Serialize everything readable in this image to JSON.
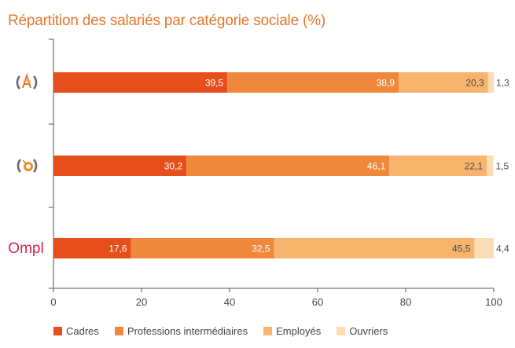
{
  "chart_data": {
    "type": "bar",
    "orientation": "horizontal",
    "stacked": true,
    "title": "Répartition des salariés par catégorie sociale (%)",
    "xlim": [
      0,
      100
    ],
    "xticks": [
      "0",
      "20",
      "40",
      "60",
      "80",
      "100"
    ],
    "grid": false,
    "legend_position": "bottom",
    "categories": [
      {
        "logo": "apec-logo",
        "logo_text": ""
      },
      {
        "logo": "observatoire-logo",
        "logo_text": ""
      },
      {
        "logo": "ompl-logo",
        "logo_text": "Ompl"
      }
    ],
    "series": [
      {
        "name": "Cadres",
        "color": "#e64e1c",
        "values": [
          39.5,
          30.2,
          17.6
        ],
        "labels": [
          "39,5",
          "30,2",
          "17,6"
        ],
        "label_color": "#ffffff"
      },
      {
        "name": "Professions intermédiaires",
        "color": "#f0883b",
        "values": [
          38.9,
          46.1,
          32.5
        ],
        "labels": [
          "38,9",
          "46,1",
          "32,5"
        ],
        "label_color": "#ffffff"
      },
      {
        "name": "Employés",
        "color": "#f6b46d",
        "values": [
          20.3,
          22.1,
          45.5
        ],
        "labels": [
          "20,3",
          "22,1",
          "45,5"
        ],
        "label_color": "#4a4a4a"
      },
      {
        "name": "Ouvriers",
        "color": "#fbdcb3",
        "values": [
          1.3,
          1.5,
          4.4
        ],
        "labels": [
          "1,3",
          "1,5",
          "4,4"
        ],
        "label_color": "#4a4a4a"
      }
    ]
  }
}
